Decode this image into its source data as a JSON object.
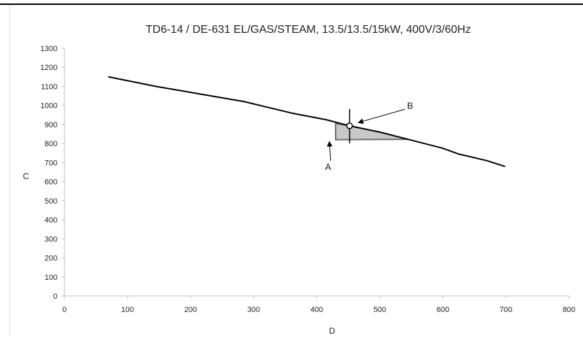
{
  "chart_data": {
    "type": "line",
    "title": "TD6-14 / DE-631 EL/GAS/STEAM, 13.5/13.5/15kW, 400V/3/60Hz",
    "xlabel": "D",
    "ylabel": "C",
    "xlim": [
      0,
      800
    ],
    "ylim": [
      0,
      1300
    ],
    "xticks": [
      0,
      100,
      200,
      300,
      400,
      500,
      600,
      700,
      800
    ],
    "yticks": [
      0,
      100,
      200,
      300,
      400,
      500,
      600,
      700,
      800,
      900,
      1000,
      1100,
      1200,
      1300
    ],
    "grid": false,
    "series": [
      {
        "color": "#000000",
        "points": [
          [
            70,
            1150
          ],
          [
            145,
            1100
          ],
          [
            215,
            1060
          ],
          [
            285,
            1020
          ],
          [
            360,
            960
          ],
          [
            415,
            925
          ],
          [
            452,
            893
          ],
          [
            500,
            860
          ],
          [
            545,
            822
          ],
          [
            600,
            775
          ],
          [
            625,
            745
          ],
          [
            670,
            710
          ],
          [
            698,
            680
          ]
        ]
      }
    ],
    "shaded_region": {
      "color": "#c8c8c8",
      "points": [
        [
          430,
          820
        ],
        [
          430,
          905
        ],
        [
          452,
          893
        ],
        [
          500,
          860
        ],
        [
          545,
          822
        ]
      ]
    },
    "operating_point": {
      "x": 452,
      "y": 893
    },
    "annotations": [
      {
        "label": "A",
        "text_at": [
          418,
          680
        ],
        "arrow_from": [
          422,
          710
        ],
        "arrow_to": [
          420,
          810
        ]
      },
      {
        "label": "B",
        "text_at": [
          548,
          1000
        ],
        "arrow_from": [
          540,
          980
        ],
        "arrow_to": [
          466,
          910
        ]
      }
    ]
  }
}
